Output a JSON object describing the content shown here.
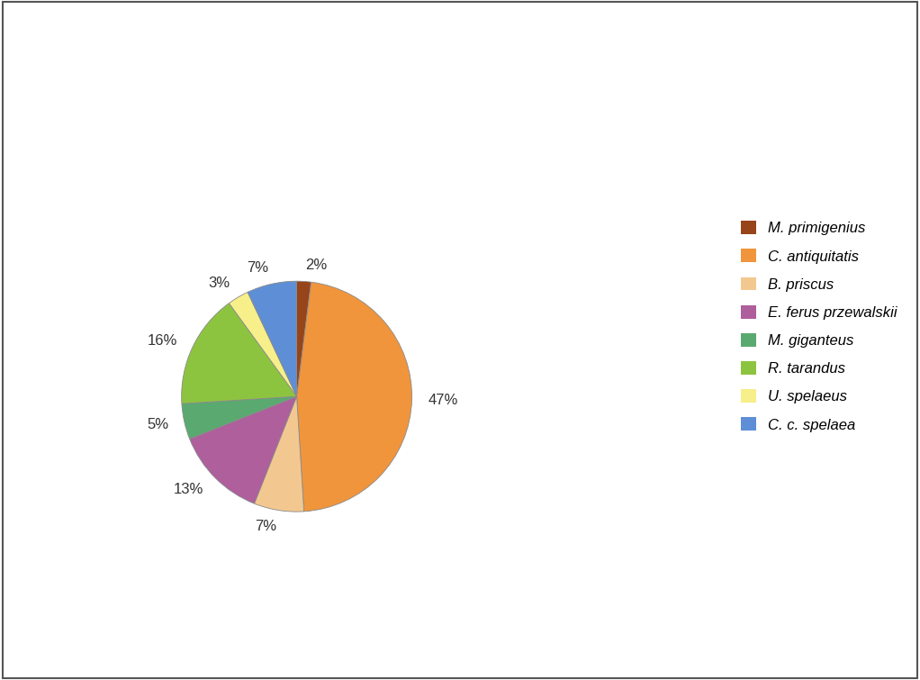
{
  "chart_data": {
    "type": "pie",
    "categories": [
      "M. primigenius",
      "C. antiquitatis",
      "B. priscus",
      "E. ferus przewalskii",
      "M. giganteus",
      "R. tarandus",
      "U. spelaeus",
      "C. c. spelaea"
    ],
    "values": [
      2,
      47,
      7,
      13,
      5,
      16,
      3,
      7
    ],
    "value_labels": [
      "2%",
      "47%",
      "7%",
      "13%",
      "5%",
      "16%",
      "3%",
      "7%"
    ],
    "colors": [
      "#97441a",
      "#f0953c",
      "#f3c890",
      "#ae5f9c",
      "#5aa970",
      "#8dc43f",
      "#f6ef8a",
      "#5e8fd6"
    ],
    "data_labels": true,
    "legend": "center right"
  }
}
